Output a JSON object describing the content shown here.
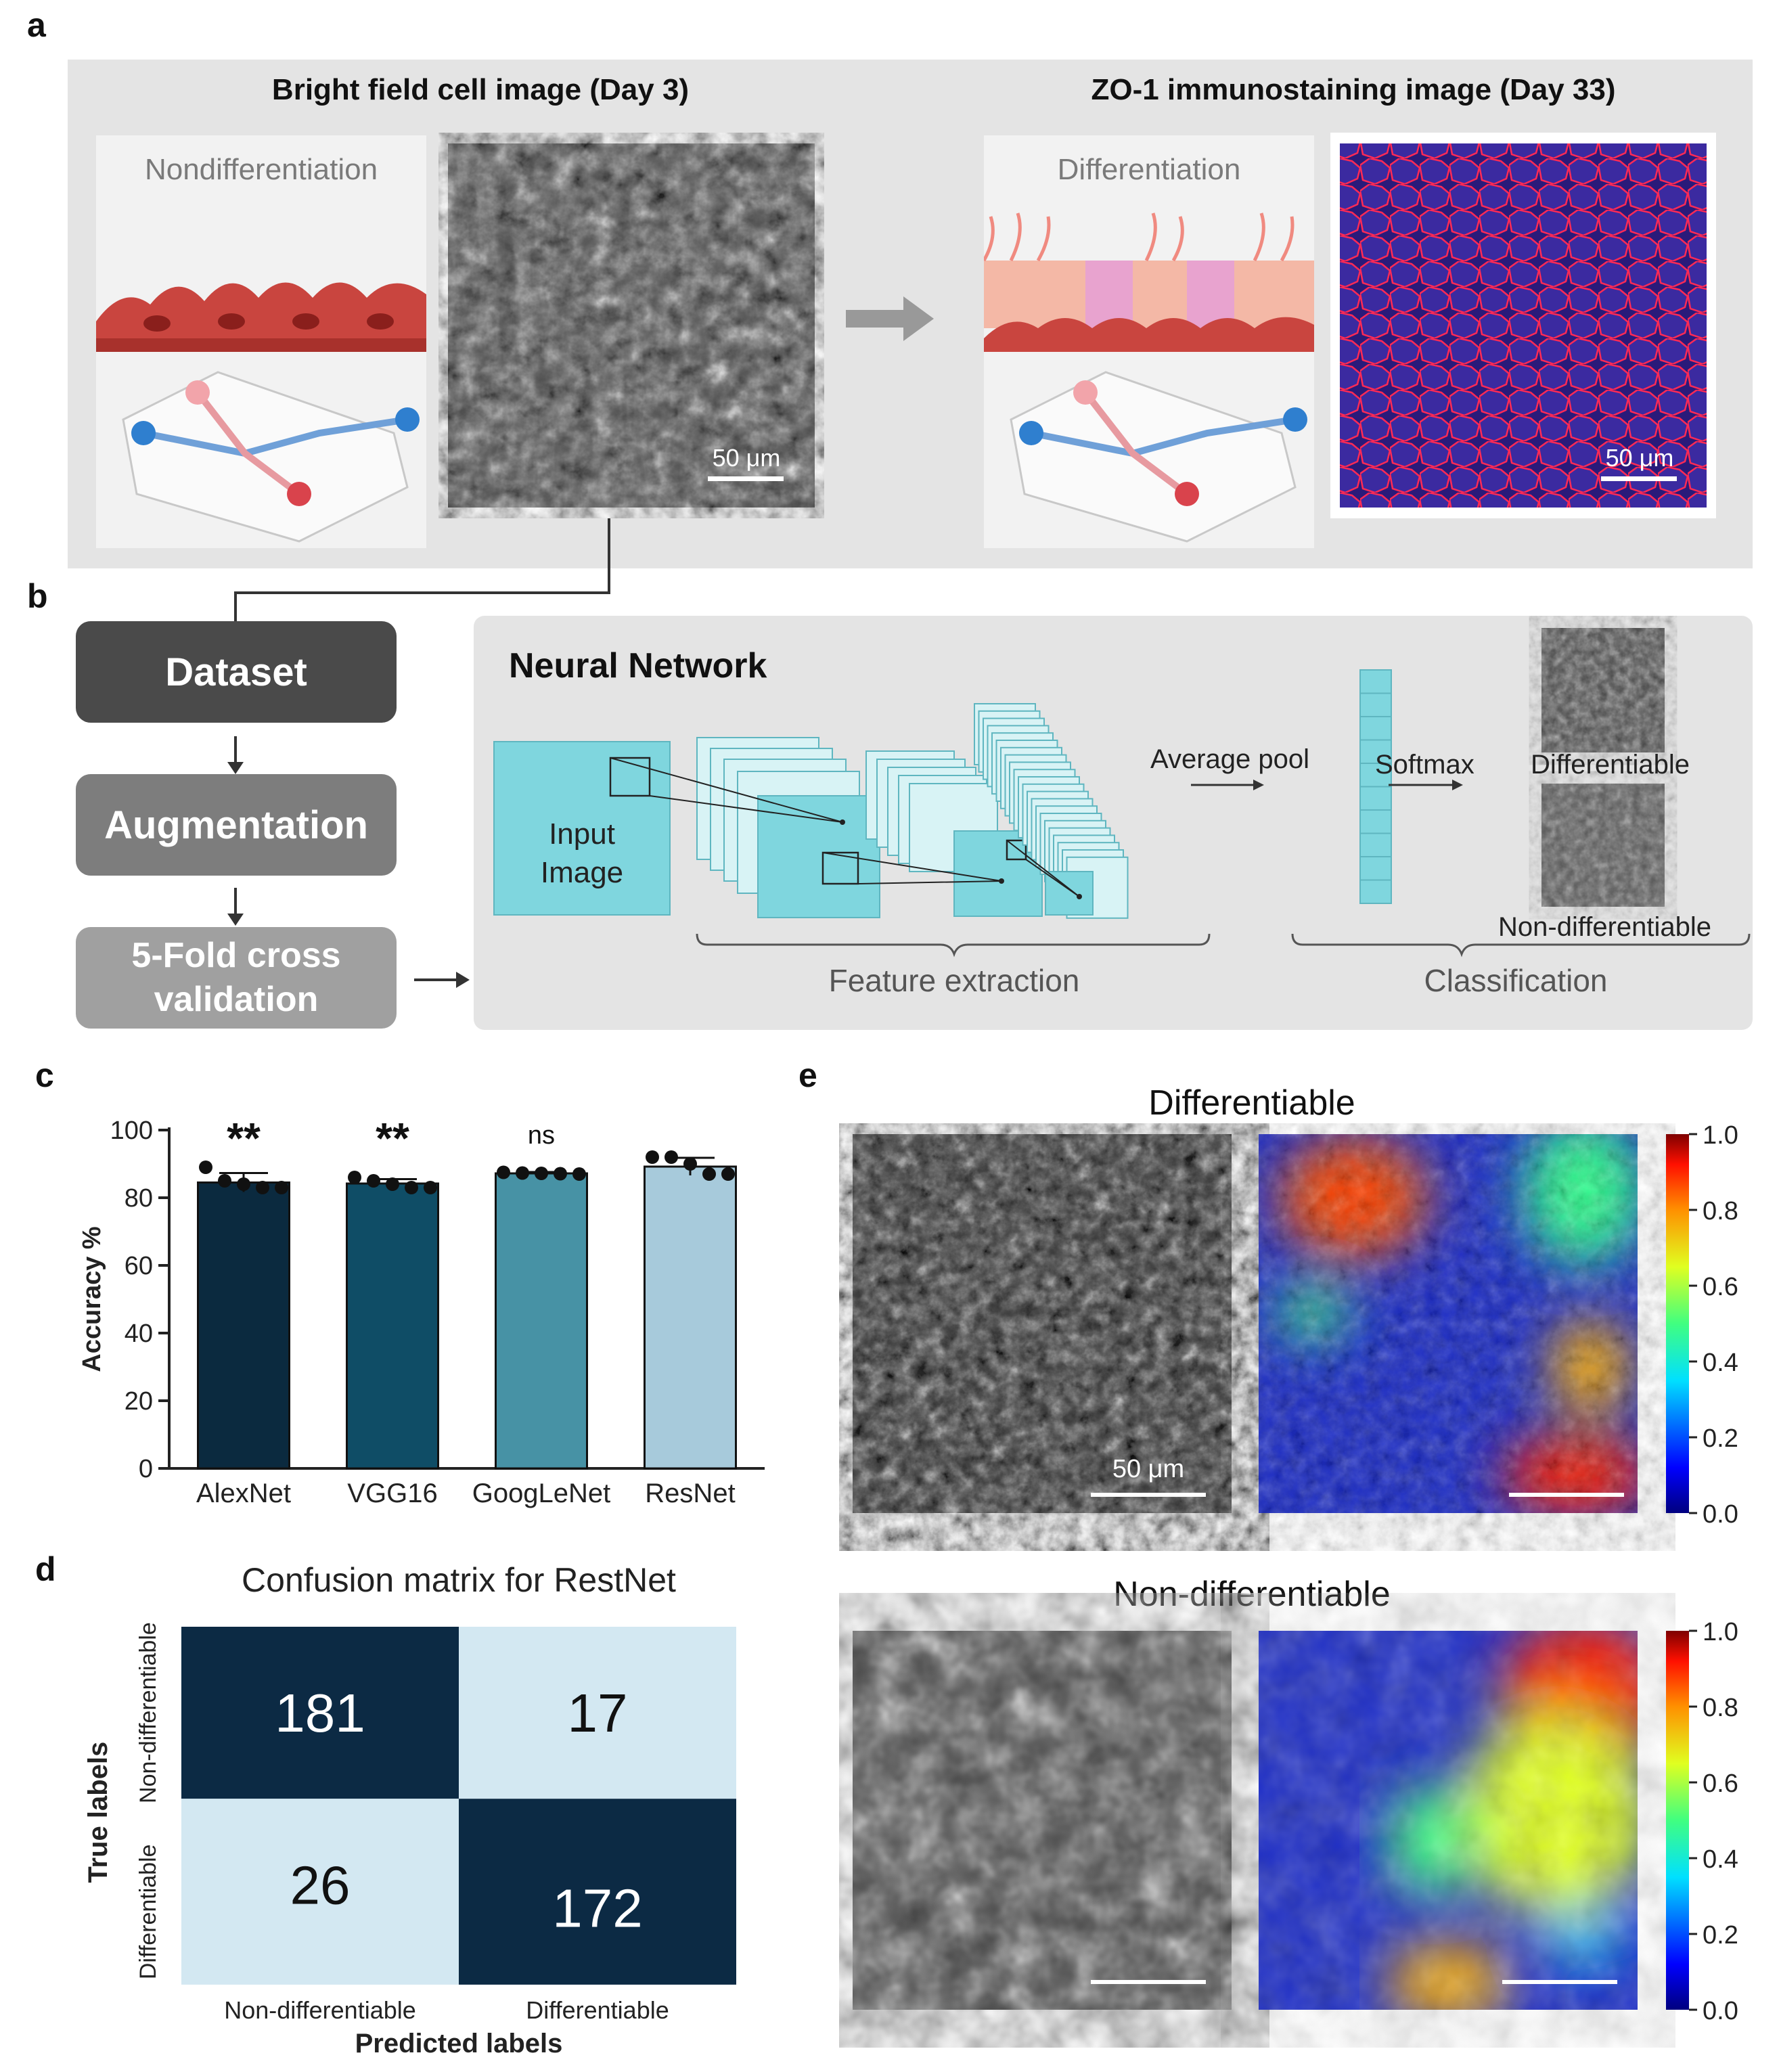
{
  "panel_a": {
    "label": "a",
    "left_title": "Bright field cell image (Day 3)",
    "right_title": "ZO-1 immunostaining image (Day 33)",
    "left_illustration_label": "Nondifferentiation",
    "right_illustration_label": "Differentiation",
    "left_scale": "50 μm",
    "right_scale": "50 μm"
  },
  "panel_b": {
    "label": "b",
    "steps": [
      "Dataset",
      "Augmentation",
      "5-Fold cross validation"
    ],
    "nn_title": "Neural Network",
    "input_image": "Input Image",
    "average_pool": "Average pool",
    "softmax": "Softmax",
    "out_top": "Differentiable",
    "out_bottom": "Non-differentiable",
    "feature_extraction": "Feature extraction",
    "classification": "Classification"
  },
  "panel_c": {
    "label": "c",
    "chart_data": {
      "type": "bar",
      "categories": [
        "AlexNet",
        "VGG16",
        "GoogLeNet",
        "ResNet"
      ],
      "values": [
        84.5,
        84.2,
        87.2,
        89.2
      ],
      "errors": [
        2.8,
        1.3,
        0.4,
        2.6
      ],
      "points": [
        [
          89,
          85,
          84,
          83,
          83
        ],
        [
          86,
          85,
          84,
          83,
          83
        ],
        [
          87.5,
          87.3,
          87.2,
          87.1,
          87
        ],
        [
          92,
          92,
          90,
          87,
          87
        ]
      ],
      "significance": [
        "**",
        "**",
        "ns",
        ""
      ],
      "colors": [
        "#0b2a3f",
        "#0f4d66",
        "#4792a5",
        "#a7cadb"
      ],
      "ylabel": "Accuracy %",
      "ylim": [
        0,
        100
      ],
      "yticks": [
        0,
        20,
        40,
        60,
        80,
        100
      ]
    }
  },
  "panel_d": {
    "label": "d",
    "chart_data": {
      "type": "heatmap",
      "title": "Confusion matrix for RestNet",
      "xlabel": "Predicted labels",
      "ylabel": "True labels",
      "x_labels": [
        "Non-differentiable",
        "Differentiable"
      ],
      "y_labels": [
        "Non-differentiable",
        "Differentiable"
      ],
      "matrix": [
        [
          181,
          17
        ],
        [
          26,
          172
        ]
      ]
    }
  },
  "panel_e": {
    "label": "e",
    "top_title": "Differentiable",
    "bottom_title": "Non-differentiable",
    "scale": "50 μm",
    "colorbar_ticks": [
      "1.0",
      "0.8",
      "0.6",
      "0.4",
      "0.2",
      "0.0"
    ]
  }
}
